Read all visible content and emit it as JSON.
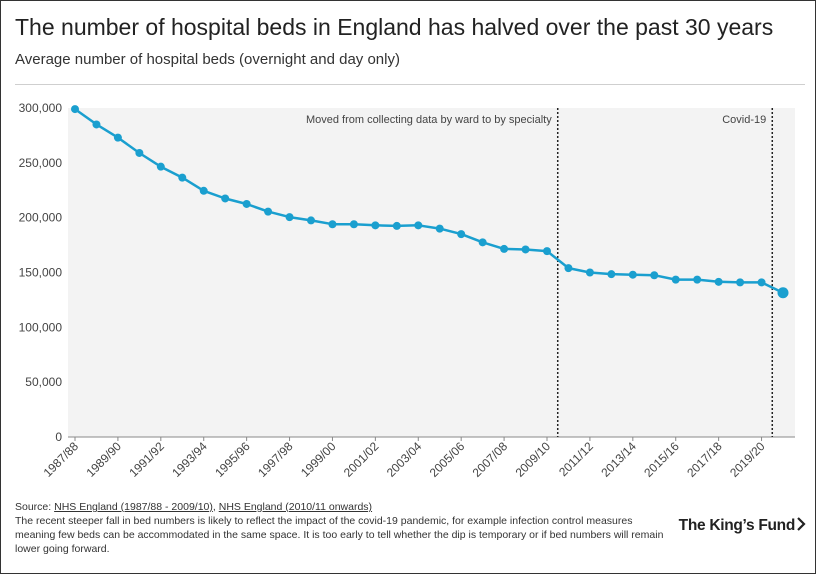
{
  "header": {
    "title": "The number of hospital beds in England has halved over the past 30 years",
    "subtitle": "Average number of hospital beds (overnight and day only)"
  },
  "chart_data": {
    "type": "line",
    "title": "The number of hospital beds in England has halved over the past 30 years",
    "subtitle": "Average number of hospital beds (overnight and day only)",
    "xlabel": "",
    "ylabel": "",
    "ylim": [
      0,
      300000
    ],
    "yticks": [
      0,
      50000,
      100000,
      150000,
      200000,
      250000,
      300000
    ],
    "ytick_labels": [
      "0",
      "50,000",
      "100,000",
      "150,000",
      "200,000",
      "250,000",
      "300,000"
    ],
    "x": [
      "1987/88",
      "1988/89",
      "1989/90",
      "1990/91",
      "1991/92",
      "1992/93",
      "1993/94",
      "1994/95",
      "1995/96",
      "1996/97",
      "1997/98",
      "1998/99",
      "1999/00",
      "2000/01",
      "2001/02",
      "2002/03",
      "2003/04",
      "2004/05",
      "2005/06",
      "2006/07",
      "2007/08",
      "2008/09",
      "2009/10",
      "2010/11",
      "2011/12",
      "2012/13",
      "2013/14",
      "2014/15",
      "2015/16",
      "2016/17",
      "2017/18",
      "2018/19",
      "2019/20",
      "2020/21"
    ],
    "xtick_labels": [
      "1987/88",
      "1989/90",
      "1991/92",
      "1993/94",
      "1995/96",
      "1997/98",
      "1999/00",
      "2001/02",
      "2003/04",
      "2005/06",
      "2007/08",
      "2009/10",
      "2011/12",
      "2013/14",
      "2015/16",
      "2017/18",
      "2019/20"
    ],
    "series": [
      {
        "name": "Average number of hospital beds",
        "color": "#1a9fcf",
        "values": [
          299000,
          285000,
          273000,
          259000,
          246500,
          236500,
          224500,
          217500,
          212500,
          205500,
          200500,
          197500,
          194000,
          194000,
          193000,
          192500,
          193000,
          190000,
          185000,
          177500,
          171500,
          171000,
          169500,
          154000,
          150000,
          148500,
          148000,
          147500,
          143500,
          143500,
          141500,
          141000,
          141000,
          131500
        ]
      }
    ],
    "annotations": [
      {
        "after_x": "2009/10",
        "text": "Moved from collecting data by ward to by specialty"
      },
      {
        "after_x": "2019/20",
        "text": "Covid-19"
      }
    ],
    "shaded_region": {
      "from_x": "1987/88",
      "to_x": "2020/21",
      "color": "#f3f3f3"
    }
  },
  "footer": {
    "source_prefix": "Source: ",
    "source_link_1": "NHS England (1987/88 - 2009/10)",
    "source_sep": ", ",
    "source_link_2": "NHS England (2010/11 onwards)",
    "note": "The recent steeper fall in bed numbers is likely to reflect the impact of the covid-19 pandemic, for example infection control measures meaning few beds can be accommodated in the same space. It is too early to tell whether the dip is temporary or if bed numbers will remain lower going forward."
  },
  "logo": {
    "text": "The King’s Fund"
  },
  "colors": {
    "line": "#1a9fcf",
    "plot_bg": "#f3f3f3",
    "text": "#222222"
  }
}
